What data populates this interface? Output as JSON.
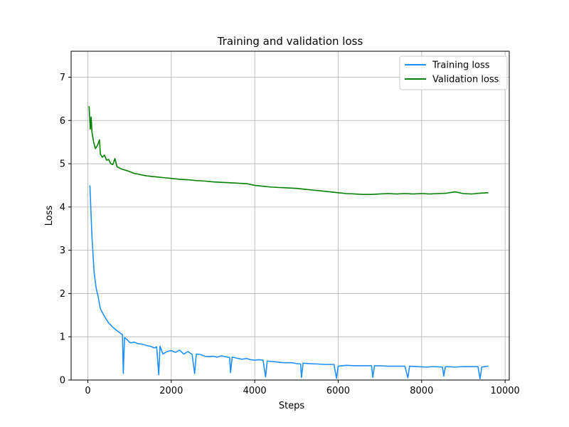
{
  "chart_data": {
    "type": "line",
    "title": "Training and validation loss",
    "xlabel": "Steps",
    "ylabel": "Loss",
    "xlim": [
      -400,
      10100
    ],
    "ylim": [
      0,
      7.6
    ],
    "x_ticks": [
      0,
      2000,
      4000,
      6000,
      8000,
      10000
    ],
    "x_tick_labels": [
      "0",
      "2000",
      "4000",
      "6000",
      "8000",
      "10000"
    ],
    "y_ticks": [
      0,
      1,
      2,
      3,
      4,
      5,
      6,
      7
    ],
    "y_tick_labels": [
      "0",
      "1",
      "2",
      "3",
      "4",
      "5",
      "6",
      "7"
    ],
    "grid": true,
    "legend": "top-right",
    "series": [
      {
        "name": "Training loss",
        "color": "#1e90ff",
        "points": [
          [
            50,
            4.5
          ],
          [
            100,
            3.3
          ],
          [
            150,
            2.5
          ],
          [
            200,
            2.12
          ],
          [
            250,
            1.92
          ],
          [
            300,
            1.65
          ],
          [
            400,
            1.47
          ],
          [
            500,
            1.32
          ],
          [
            600,
            1.22
          ],
          [
            700,
            1.14
          ],
          [
            800,
            1.07
          ],
          [
            830,
            1.05
          ],
          [
            850,
            0.15
          ],
          [
            880,
            0.98
          ],
          [
            950,
            0.93
          ],
          [
            1000,
            0.87
          ],
          [
            1050,
            0.86
          ],
          [
            1100,
            0.88
          ],
          [
            1200,
            0.84
          ],
          [
            1300,
            0.83
          ],
          [
            1400,
            0.8
          ],
          [
            1500,
            0.78
          ],
          [
            1600,
            0.74
          ],
          [
            1650,
            0.77
          ],
          [
            1700,
            0.12
          ],
          [
            1730,
            0.78
          ],
          [
            1800,
            0.6
          ],
          [
            1900,
            0.66
          ],
          [
            2000,
            0.68
          ],
          [
            2100,
            0.64
          ],
          [
            2200,
            0.69
          ],
          [
            2300,
            0.6
          ],
          [
            2400,
            0.66
          ],
          [
            2500,
            0.59
          ],
          [
            2560,
            0.15
          ],
          [
            2600,
            0.6
          ],
          [
            2700,
            0.59
          ],
          [
            2800,
            0.55
          ],
          [
            2900,
            0.54
          ],
          [
            3000,
            0.55
          ],
          [
            3100,
            0.53
          ],
          [
            3200,
            0.56
          ],
          [
            3300,
            0.54
          ],
          [
            3400,
            0.52
          ],
          [
            3420,
            0.17
          ],
          [
            3460,
            0.53
          ],
          [
            3600,
            0.5
          ],
          [
            3700,
            0.48
          ],
          [
            3800,
            0.5
          ],
          [
            3900,
            0.47
          ],
          [
            4000,
            0.46
          ],
          [
            4100,
            0.47
          ],
          [
            4200,
            0.46
          ],
          [
            4260,
            0.07
          ],
          [
            4300,
            0.44
          ],
          [
            4500,
            0.42
          ],
          [
            4700,
            0.4
          ],
          [
            4900,
            0.4
          ],
          [
            5000,
            0.38
          ],
          [
            5100,
            0.37
          ],
          [
            5120,
            0.06
          ],
          [
            5160,
            0.39
          ],
          [
            5300,
            0.38
          ],
          [
            5500,
            0.37
          ],
          [
            5700,
            0.36
          ],
          [
            5900,
            0.36
          ],
          [
            5960,
            0.04
          ],
          [
            6000,
            0.32
          ],
          [
            6200,
            0.34
          ],
          [
            6400,
            0.33
          ],
          [
            6600,
            0.33
          ],
          [
            6800,
            0.33
          ],
          [
            6830,
            0.06
          ],
          [
            6870,
            0.33
          ],
          [
            7000,
            0.33
          ],
          [
            7200,
            0.32
          ],
          [
            7400,
            0.32
          ],
          [
            7600,
            0.32
          ],
          [
            7670,
            0.05
          ],
          [
            7710,
            0.32
          ],
          [
            7900,
            0.31
          ],
          [
            8100,
            0.3
          ],
          [
            8300,
            0.31
          ],
          [
            8500,
            0.3
          ],
          [
            8530,
            0.09
          ],
          [
            8570,
            0.31
          ],
          [
            8800,
            0.3
          ],
          [
            9000,
            0.31
          ],
          [
            9200,
            0.31
          ],
          [
            9350,
            0.31
          ],
          [
            9400,
            0.03
          ],
          [
            9440,
            0.3
          ],
          [
            9500,
            0.31
          ],
          [
            9600,
            0.32
          ]
        ]
      },
      {
        "name": "Validation loss",
        "color": "#008000",
        "points": [
          [
            30,
            6.33
          ],
          [
            60,
            5.8
          ],
          [
            80,
            6.08
          ],
          [
            100,
            5.72
          ],
          [
            140,
            5.5
          ],
          [
            180,
            5.35
          ],
          [
            230,
            5.42
          ],
          [
            280,
            5.55
          ],
          [
            300,
            5.22
          ],
          [
            350,
            5.15
          ],
          [
            400,
            5.2
          ],
          [
            450,
            5.08
          ],
          [
            500,
            5.1
          ],
          [
            550,
            5.0
          ],
          [
            600,
            4.98
          ],
          [
            650,
            5.12
          ],
          [
            700,
            4.93
          ],
          [
            800,
            4.88
          ],
          [
            900,
            4.85
          ],
          [
            1000,
            4.82
          ],
          [
            1100,
            4.78
          ],
          [
            1200,
            4.76
          ],
          [
            1300,
            4.74
          ],
          [
            1400,
            4.72
          ],
          [
            1500,
            4.71
          ],
          [
            1600,
            4.7
          ],
          [
            1700,
            4.69
          ],
          [
            1800,
            4.68
          ],
          [
            1900,
            4.67
          ],
          [
            2000,
            4.66
          ],
          [
            2200,
            4.64
          ],
          [
            2400,
            4.63
          ],
          [
            2600,
            4.61
          ],
          [
            2800,
            4.6
          ],
          [
            3000,
            4.58
          ],
          [
            3200,
            4.57
          ],
          [
            3400,
            4.56
          ],
          [
            3600,
            4.55
          ],
          [
            3800,
            4.54
          ],
          [
            4000,
            4.5
          ],
          [
            4200,
            4.48
          ],
          [
            4400,
            4.46
          ],
          [
            4600,
            4.45
          ],
          [
            4800,
            4.44
          ],
          [
            5000,
            4.43
          ],
          [
            5200,
            4.41
          ],
          [
            5400,
            4.39
          ],
          [
            5600,
            4.37
          ],
          [
            5800,
            4.35
          ],
          [
            6000,
            4.33
          ],
          [
            6200,
            4.31
          ],
          [
            6400,
            4.3
          ],
          [
            6600,
            4.29
          ],
          [
            6800,
            4.29
          ],
          [
            7000,
            4.3
          ],
          [
            7200,
            4.31
          ],
          [
            7400,
            4.3
          ],
          [
            7600,
            4.31
          ],
          [
            7800,
            4.3
          ],
          [
            8000,
            4.31
          ],
          [
            8200,
            4.3
          ],
          [
            8400,
            4.31
          ],
          [
            8600,
            4.32
          ],
          [
            8800,
            4.35
          ],
          [
            9000,
            4.31
          ],
          [
            9200,
            4.3
          ],
          [
            9400,
            4.32
          ],
          [
            9600,
            4.33
          ]
        ]
      }
    ]
  }
}
